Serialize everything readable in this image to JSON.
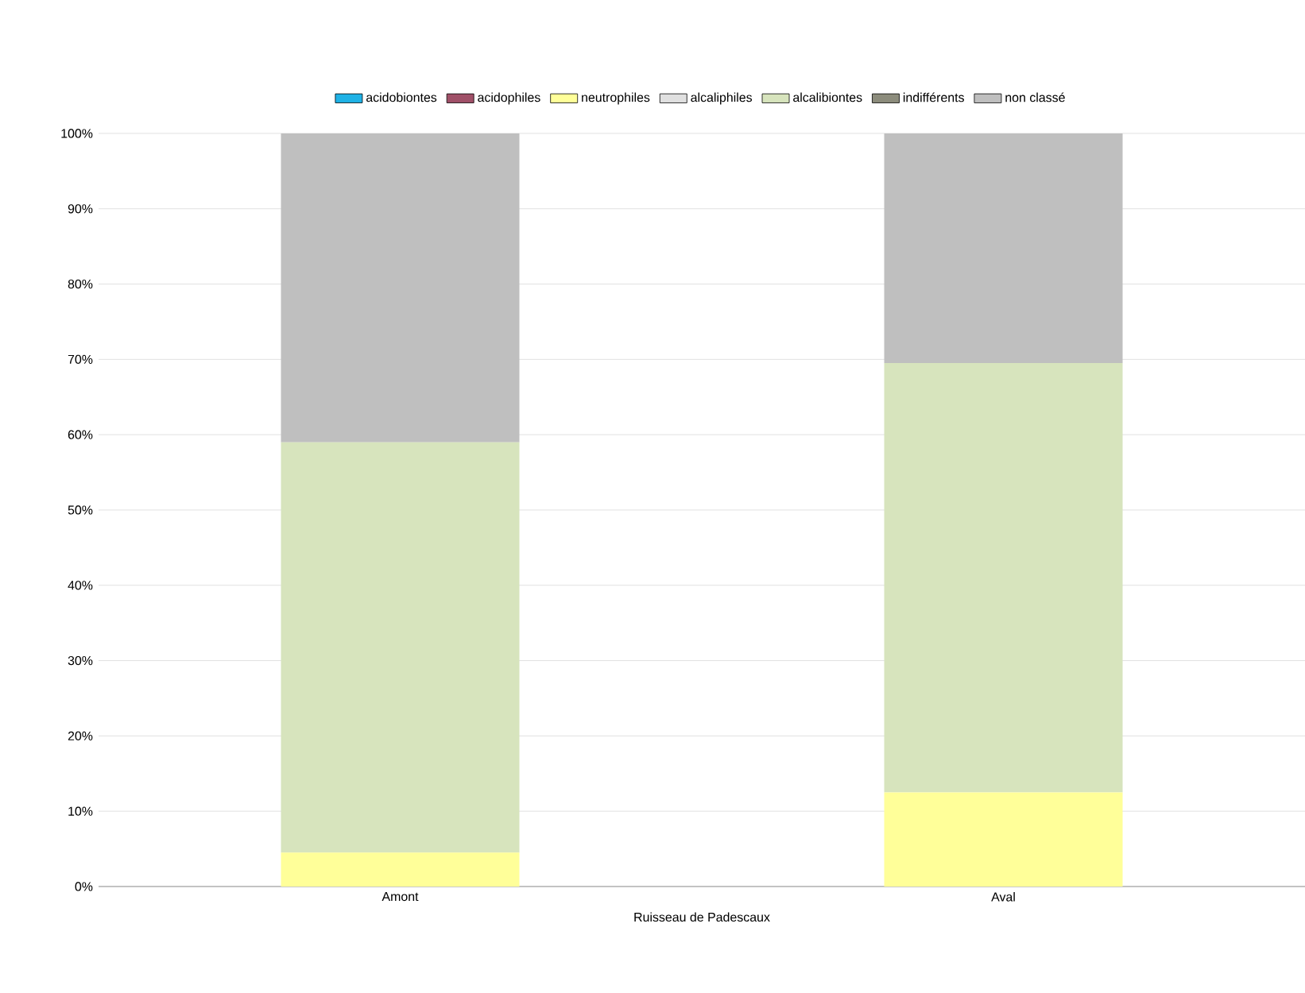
{
  "chart_data": {
    "type": "bar",
    "stacked": true,
    "categories": [
      "Amont",
      "Aval"
    ],
    "xlabel": "Ruisseau de Padescaux",
    "series": [
      {
        "name": "acidobiontes",
        "color": "#1fb2e6",
        "values": [
          0,
          0
        ]
      },
      {
        "name": "acidophiles",
        "color": "#a05068",
        "values": [
          0,
          0
        ]
      },
      {
        "name": "neutrophiles",
        "color": "#ffff99",
        "values": [
          4.5,
          12.5
        ]
      },
      {
        "name": "alcaliphiles",
        "color": "#e0e0e0",
        "values": [
          0,
          0
        ]
      },
      {
        "name": "alcalibiontes",
        "color": "#d7e4bd",
        "values": [
          54.5,
          57
        ]
      },
      {
        "name": "indifférents",
        "color": "#8c8c7c",
        "values": [
          0,
          0
        ]
      },
      {
        "name": "non classé",
        "color": "#bfbfbf",
        "values": [
          41,
          30.5
        ]
      }
    ],
    "ylim": [
      0,
      100
    ],
    "yticks": [
      {
        "value": 0,
        "label": "0%"
      },
      {
        "value": 10,
        "label": "10%"
      },
      {
        "value": 20,
        "label": "20%"
      },
      {
        "value": 30,
        "label": "30%"
      },
      {
        "value": 40,
        "label": "40%"
      },
      {
        "value": 50,
        "label": "50%"
      },
      {
        "value": 60,
        "label": "60%"
      },
      {
        "value": 70,
        "label": "70%"
      },
      {
        "value": 80,
        "label": "80%"
      },
      {
        "value": 90,
        "label": "90%"
      },
      {
        "value": 100,
        "label": "100%"
      }
    ],
    "grid": "y",
    "legend": "top"
  }
}
